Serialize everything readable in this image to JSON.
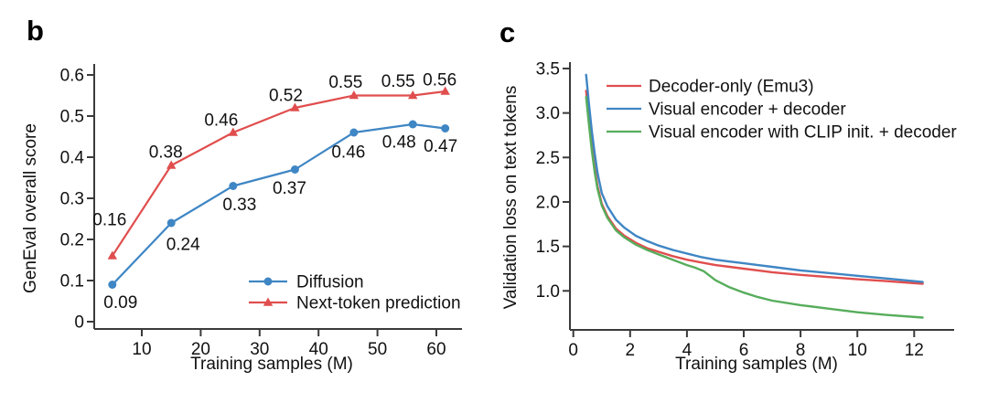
{
  "figure": {
    "background": "#ffffff",
    "axis_color": "#3a3a3a",
    "panels": [
      {
        "letter": "b",
        "chart_data": {
          "type": "line",
          "title": "",
          "xlabel": "Training samples (M)",
          "ylabel": "GenEval overall score",
          "xlim": [
            2,
            64
          ],
          "ylim": [
            0,
            0.63
          ],
          "xticks": [
            10,
            20,
            30,
            40,
            50,
            60
          ],
          "ytick_values": [
            0,
            0.1,
            0.2,
            0.3,
            0.4,
            0.5,
            0.6
          ],
          "ytick_labels": [
            "0",
            "0.1",
            "0.2",
            "0.3",
            "0.4",
            "0.5",
            "0.6"
          ],
          "grid": false,
          "legend_position": "inside lower right",
          "series": [
            {
              "name": "Diffusion",
              "color": "#3f86c4",
              "marker": "circle",
              "x": [
                5,
                15,
                25.5,
                36,
                46,
                56,
                61.5
              ],
              "y": [
                0.09,
                0.24,
                0.33,
                0.37,
                0.46,
                0.48,
                0.47
              ],
              "point_labels": [
                "0.09",
                "0.24",
                "0.33",
                "0.37",
                "0.46",
                "0.48",
                "0.47"
              ]
            },
            {
              "name": "Next-token prediction",
              "color": "#e04e4e",
              "marker": "triangle",
              "x": [
                5,
                15,
                25.5,
                36,
                46,
                56,
                61.5
              ],
              "y": [
                0.16,
                0.38,
                0.46,
                0.52,
                0.55,
                0.55,
                0.56
              ],
              "point_labels": [
                "0.16",
                "0.38",
                "0.46",
                "0.52",
                "0.55",
                "0.55",
                "0.56"
              ]
            }
          ]
        }
      },
      {
        "letter": "c",
        "chart_data": {
          "type": "line",
          "title": "",
          "xlabel": "Training samples (M)",
          "ylabel": "Validation loss on text tokens",
          "xlim": [
            -0.3,
            13.4
          ],
          "ylim": [
            0.6,
            3.55
          ],
          "xticks": [
            0,
            2,
            4,
            6,
            8,
            10,
            12
          ],
          "ytick_values": [
            1.0,
            1.5,
            2.0,
            2.5,
            3.0,
            3.5
          ],
          "ytick_labels": [
            "1.0",
            "1.5",
            "2.0",
            "2.5",
            "3.0",
            "3.5"
          ],
          "grid": false,
          "legend_position": "inside upper left",
          "series": [
            {
              "name": "Decoder-only (Emu3)",
              "color": "#e04e4e",
              "marker": "none",
              "x": [
                0.45,
                0.55,
                0.65,
                0.75,
                0.85,
                1.0,
                1.2,
                1.5,
                1.8,
                2.2,
                2.6,
                3.0,
                3.5,
                4.0,
                4.5,
                5.0,
                5.5,
                6.0,
                6.5,
                7.0,
                8.0,
                9.0,
                10.0,
                11.0,
                12.3
              ],
              "y": [
                3.25,
                2.92,
                2.62,
                2.38,
                2.18,
                1.98,
                1.84,
                1.7,
                1.62,
                1.54,
                1.48,
                1.44,
                1.39,
                1.35,
                1.32,
                1.29,
                1.27,
                1.25,
                1.23,
                1.21,
                1.18,
                1.155,
                1.13,
                1.11,
                1.08
              ]
            },
            {
              "name": "Visual encoder + decoder",
              "color": "#3f86c4",
              "marker": "none",
              "x": [
                0.45,
                0.55,
                0.65,
                0.75,
                0.85,
                1.0,
                1.2,
                1.5,
                1.8,
                2.2,
                2.6,
                3.0,
                3.5,
                4.0,
                4.5,
                5.0,
                5.5,
                6.0,
                6.5,
                7.0,
                8.0,
                9.0,
                10.0,
                11.0,
                12.3
              ],
              "y": [
                3.43,
                3.1,
                2.8,
                2.55,
                2.33,
                2.1,
                1.95,
                1.8,
                1.71,
                1.62,
                1.56,
                1.51,
                1.46,
                1.42,
                1.38,
                1.35,
                1.33,
                1.31,
                1.29,
                1.27,
                1.23,
                1.2,
                1.17,
                1.14,
                1.1
              ]
            },
            {
              "name": "Visual encoder with CLIP init. + decoder",
              "color": "#57ad5c",
              "marker": "none",
              "x": [
                0.45,
                0.55,
                0.65,
                0.75,
                0.85,
                1.0,
                1.2,
                1.5,
                1.8,
                2.2,
                2.6,
                3.0,
                3.5,
                4.0,
                4.3,
                4.6,
                5.0,
                5.5,
                6.0,
                6.5,
                7.0,
                8.0,
                9.0,
                10.0,
                11.0,
                12.3
              ],
              "y": [
                3.18,
                2.87,
                2.58,
                2.34,
                2.15,
                1.96,
                1.82,
                1.68,
                1.6,
                1.52,
                1.46,
                1.41,
                1.35,
                1.29,
                1.26,
                1.22,
                1.12,
                1.04,
                0.98,
                0.93,
                0.89,
                0.84,
                0.8,
                0.76,
                0.73,
                0.7
              ]
            }
          ]
        }
      }
    ]
  }
}
